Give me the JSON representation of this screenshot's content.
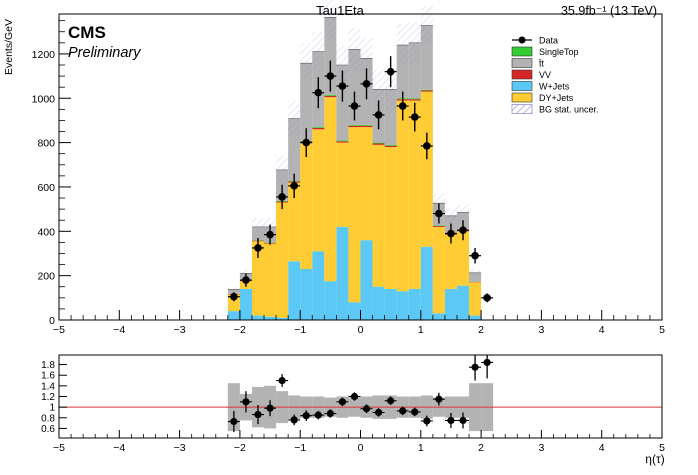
{
  "header": {
    "title": "Tau1Eta",
    "lumi": "35.9fb⁻¹ (13 TeV)",
    "experiment": "CMS",
    "status": "Preliminary"
  },
  "chart_data": [
    {
      "type": "bar",
      "subtype": "stacked histogram with data points",
      "title": "Tau1Eta",
      "xlabel": "",
      "ylabel": "Events/GeV",
      "xlim": [
        -5,
        5
      ],
      "ylim": [
        0,
        1380
      ],
      "xticks": [
        -5,
        -4,
        -3,
        -2,
        -1,
        0,
        1,
        2,
        3,
        4,
        5
      ],
      "yticks": [
        0,
        200,
        400,
        600,
        800,
        1000,
        1200
      ],
      "bin_edges": [
        -2.2,
        -2.0,
        -1.8,
        -1.6,
        -1.4,
        -1.2,
        -1.0,
        -0.8,
        -0.6,
        -0.4,
        -0.2,
        0.0,
        0.2,
        0.4,
        0.6,
        0.8,
        1.0,
        1.2,
        1.4,
        1.6,
        1.8,
        2.0,
        2.2
      ],
      "legend_position": "top-right",
      "legend": [
        {
          "label": "Data",
          "kind": "marker",
          "color": "#000000"
        },
        {
          "label": "SingleTop",
          "kind": "fill",
          "color": "#33cc33"
        },
        {
          "label": "t̄t",
          "kind": "fill",
          "color": "#b3b3b3"
        },
        {
          "label": "VV",
          "kind": "fill",
          "color": "#d62728"
        },
        {
          "label": "W+Jets",
          "kind": "fill",
          "color": "#5bc8f5"
        },
        {
          "label": "DY+Jets",
          "kind": "fill",
          "color": "#ffcc33"
        },
        {
          "label": "BG stat. uncer.",
          "kind": "hatch",
          "color": "#9b8fd6"
        }
      ],
      "series": [
        {
          "name": "W+Jets",
          "color": "#5bc8f5",
          "values": [
            40,
            140,
            20,
            15,
            10,
            265,
            230,
            310,
            175,
            420,
            80,
            360,
            150,
            140,
            130,
            140,
            330,
            30,
            140,
            155,
            20,
            0
          ]
        },
        {
          "name": "DY+Jets",
          "color": "#ffcc33",
          "values": [
            75,
            35,
            335,
            330,
            520,
            355,
            570,
            550,
            830,
            380,
            790,
            510,
            640,
            640,
            860,
            850,
            700,
            390,
            245,
            245,
            150,
            0
          ]
        },
        {
          "name": "VV",
          "color": "#d62728",
          "values": [
            2,
            3,
            3,
            3,
            4,
            5,
            5,
            6,
            6,
            6,
            6,
            6,
            6,
            6,
            6,
            6,
            5,
            4,
            3,
            3,
            2,
            0
          ]
        },
        {
          "name": "SingleTop",
          "color": "#33cc33",
          "values": [
            1,
            2,
            2,
            2,
            3,
            3,
            3,
            4,
            4,
            4,
            4,
            4,
            4,
            4,
            4,
            4,
            3,
            3,
            2,
            2,
            1,
            0
          ]
        },
        {
          "name": "t̄t",
          "color": "#b3b3b3",
          "values": [
            20,
            30,
            60,
            70,
            140,
            280,
            350,
            340,
            350,
            340,
            340,
            300,
            240,
            250,
            240,
            250,
            290,
            100,
            80,
            80,
            40,
            0
          ]
        }
      ],
      "stat_uncertainty": [
        10,
        14,
        40,
        40,
        65,
        80,
        90,
        90,
        95,
        90,
        95,
        95,
        90,
        90,
        95,
        95,
        90,
        45,
        35,
        35,
        15,
        0
      ],
      "data_points": {
        "name": "Data",
        "x": [
          -2.1,
          -1.9,
          -1.7,
          -1.5,
          -1.3,
          -1.1,
          -0.9,
          -0.7,
          -0.5,
          -0.3,
          -0.1,
          0.1,
          0.3,
          0.5,
          0.7,
          0.9,
          1.1,
          1.3,
          1.5,
          1.7,
          1.9,
          2.1
        ],
        "y": [
          105,
          180,
          325,
          385,
          555,
          605,
          800,
          1025,
          1100,
          1055,
          965,
          1065,
          925,
          1120,
          965,
          915,
          785,
          480,
          390,
          405,
          290,
          100
        ],
        "yerr": [
          20,
          30,
          45,
          45,
          55,
          55,
          65,
          70,
          70,
          70,
          65,
          70,
          65,
          70,
          65,
          65,
          60,
          45,
          45,
          45,
          35,
          20
        ]
      }
    },
    {
      "type": "scatter",
      "subtype": "ratio panel",
      "xlabel": "η(τ)",
      "ylabel": "",
      "xlim": [
        -5,
        5
      ],
      "ylim": [
        0.42,
        1.98
      ],
      "xticks": [
        -5,
        -4,
        -3,
        -2,
        -1,
        0,
        1,
        2,
        3,
        4,
        5
      ],
      "yticks": [
        0.6,
        0.8,
        1,
        1.2,
        1.4,
        1.6,
        1.8
      ],
      "reference_line": 1,
      "band_color": "#b3b3b3",
      "band_low": [
        0.55,
        0.75,
        0.62,
        0.6,
        0.7,
        0.78,
        0.8,
        0.8,
        0.82,
        0.8,
        0.82,
        0.8,
        0.78,
        0.78,
        0.8,
        0.8,
        0.78,
        0.82,
        0.8,
        0.8,
        0.55,
        0.55
      ],
      "band_high": [
        1.45,
        1.25,
        1.38,
        1.4,
        1.3,
        1.22,
        1.2,
        1.2,
        1.18,
        1.2,
        1.18,
        1.2,
        1.22,
        1.22,
        1.2,
        1.2,
        1.22,
        1.18,
        1.2,
        1.2,
        1.45,
        1.45
      ],
      "x": [
        -2.1,
        -1.9,
        -1.7,
        -1.5,
        -1.3,
        -1.1,
        -0.9,
        -0.7,
        -0.5,
        -0.3,
        -0.1,
        0.1,
        0.3,
        0.5,
        0.7,
        0.9,
        1.1,
        1.3,
        1.5,
        1.7,
        1.9,
        2.1
      ],
      "y": [
        0.73,
        1.1,
        0.86,
        0.98,
        1.5,
        0.76,
        0.84,
        0.85,
        0.88,
        1.1,
        1.2,
        0.97,
        0.9,
        1.12,
        0.93,
        0.91,
        0.74,
        1.15,
        0.75,
        0.75,
        1.75,
        1.84
      ],
      "yerr": [
        0.2,
        0.2,
        0.18,
        0.15,
        0.12,
        0.1,
        0.1,
        0.08,
        0.08,
        0.08,
        0.08,
        0.08,
        0.08,
        0.08,
        0.08,
        0.08,
        0.1,
        0.12,
        0.14,
        0.15,
        0.25,
        0.3
      ]
    }
  ]
}
